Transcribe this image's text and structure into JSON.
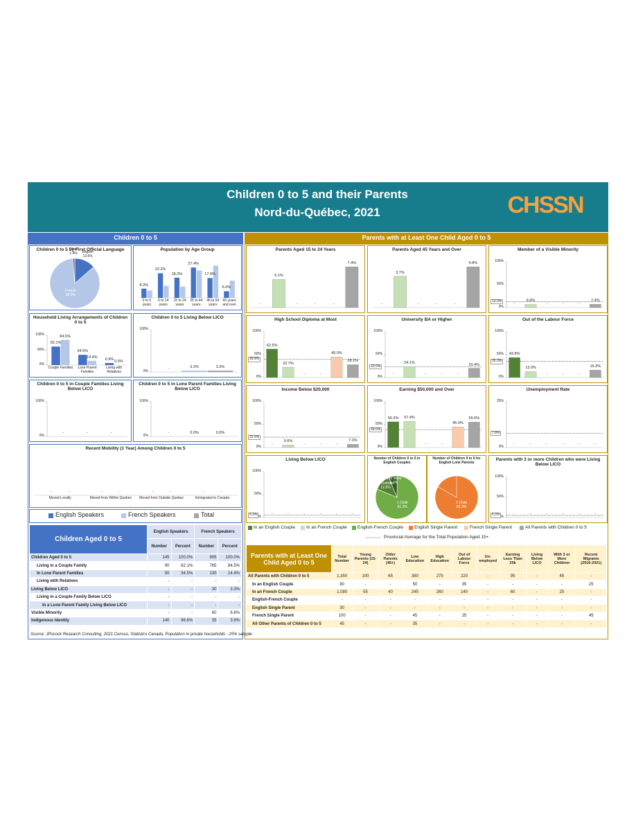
{
  "header": {
    "title": "Children 0 to 5 and their Parents",
    "subtitle": "Nord-du-Québec, 2021",
    "logo": "CHSSN"
  },
  "sections": {
    "children": "Children 0 to 5",
    "parents": "Parents with at Least One Child Aged 0 to 5"
  },
  "legend_left": [
    {
      "name": "English Speakers",
      "color": "#4472c4"
    },
    {
      "name": "French Speakers",
      "color": "#b4c7e7"
    },
    {
      "name": "Total",
      "color": "#a5a5a5"
    }
  ],
  "legend_right": [
    {
      "name": "In an English Couple",
      "color": "#548235"
    },
    {
      "name": "In an French Couple",
      "color": "#c5e0b4"
    },
    {
      "name": "English-French Couple",
      "color": "#70ad47"
    },
    {
      "name": "English Single Parent",
      "color": "#ed7d31"
    },
    {
      "name": "French Single Parent",
      "color": "#f8cbad"
    },
    {
      "name": "All Parents with Children 0 to 5",
      "color": "#a5a5a5"
    }
  ],
  "provincial_average": "Provincial Average for the Total Population Aged 15+",
  "chart_data": [
    {
      "type": "pie",
      "title": "Children 0 to 5 by First Official Language",
      "categories": [
        "English",
        "French",
        "Other"
      ],
      "values": [
        13.6,
        85.0,
        1.4
      ],
      "value_labels": [
        "13.6%",
        "85.0%",
        "1.4%"
      ],
      "colors": [
        "#4472c4",
        "#b4c7e7",
        "#7f7f7f"
      ]
    },
    {
      "type": "bar",
      "title": "Population by Age Group",
      "categories": [
        "0 to 5 years",
        "6 to 14 years",
        "15 to 24 years",
        "25 to 44 years",
        "45 to 64 years",
        "65 years and over"
      ],
      "series": [
        {
          "color": "#4472c4",
          "values": [
            8.3,
            22.2,
            18.2,
            27.4,
            17.9,
            6.0
          ],
          "value_labels": [
            "8.3%",
            "22.2%",
            "18.2%",
            "27.4%",
            "17.9%",
            "6.0%"
          ]
        },
        {
          "color": "#b4c7e7",
          "values": [
            6.6,
            11.0,
            10.2,
            24.8,
            29.0,
            15.5
          ]
        }
      ]
    },
    {
      "type": "bar",
      "title": "Household Living Arrangements of Children 0 to 5",
      "categories": [
        "Couple Families",
        "Lone Parent Families",
        "Living with Relatives"
      ],
      "ylim": [
        0,
        100
      ],
      "yticks": [
        {
          "value": 0,
          "label": "0%"
        },
        {
          "value": 50,
          "label": "50%"
        },
        {
          "value": 100,
          "label": "100%"
        }
      ],
      "series": [
        {
          "color": "#4472c4",
          "values": [
            62.1,
            34.5,
            6.9
          ],
          "value_labels": [
            "62.1%",
            "34.5%",
            "6.9%"
          ]
        },
        {
          "color": "#b4c7e7",
          "values": [
            84.5,
            14.4,
            0.0
          ],
          "value_labels": [
            "84.5%",
            "14.4%",
            "0.0%"
          ]
        }
      ]
    },
    {
      "type": "bar",
      "title": "Children 0 to 5 Living Below LICO",
      "categories": [
        null
      ],
      "ylim": [
        0,
        100
      ],
      "yticks": [
        {
          "value": 0,
          "label": "0%"
        },
        {
          "value": 100,
          "label": "100%"
        }
      ],
      "series": [
        {
          "color": "#4472c4",
          "values": [
            null
          ],
          "value_labels": [
            "-"
          ]
        },
        {
          "color": "#b4c7e7",
          "values": [
            3.3
          ],
          "value_labels": [
            "3.3%"
          ]
        },
        {
          "color": "#a5a5a5",
          "values": [
            3.3
          ],
          "value_labels": [
            "3.3%"
          ]
        }
      ]
    },
    {
      "type": "bar",
      "title": "Children 0 to 5 in Couple Families Living Below LICO",
      "categories": [
        null
      ],
      "ylim": [
        0,
        100
      ],
      "yticks": [
        {
          "value": 0,
          "label": "0%"
        },
        {
          "value": 100,
          "label": "100%"
        }
      ],
      "series": [
        {
          "color": "#4472c4",
          "values": [
            null
          ],
          "value_labels": [
            "-"
          ]
        },
        {
          "color": "#b4c7e7",
          "values": [
            null
          ],
          "value_labels": [
            "-"
          ]
        },
        {
          "color": "#a5a5a5",
          "values": [
            null
          ],
          "value_labels": [
            "-"
          ]
        }
      ]
    },
    {
      "type": "bar",
      "title": "Children 0 to 5 in Lone Parent Families Living Below LICO",
      "categories": [
        null
      ],
      "ylim": [
        0,
        100
      ],
      "yticks": [
        {
          "value": 0,
          "label": "0%"
        },
        {
          "value": 100,
          "label": "100%"
        }
      ],
      "series": [
        {
          "color": "#4472c4",
          "values": [
            null
          ],
          "value_labels": [
            "-"
          ]
        },
        {
          "color": "#b4c7e7",
          "values": [
            0.0
          ],
          "value_labels": [
            "0.0%"
          ]
        },
        {
          "color": "#a5a5a5",
          "values": [
            0.0
          ],
          "value_labels": [
            "0.0%"
          ]
        }
      ]
    },
    {
      "type": "bar",
      "title": "Recent Mobility (1 Year) Among Children 0 to 5",
      "categories": [
        "Moved Locally",
        "Moved from Within Quebec",
        "Moved from Outside Quebec",
        "Immigrated to Canada"
      ],
      "series": [
        {
          "color": "#4472c4",
          "values": [
            null,
            null,
            null,
            null
          ],
          "value_labels": [
            "-",
            "-",
            "-",
            "-"
          ]
        },
        {
          "color": "#b4c7e7",
          "values": [
            null,
            null,
            null,
            null
          ],
          "value_labels": [
            "-",
            "-",
            "-",
            "-"
          ]
        }
      ]
    },
    {
      "type": "column",
      "title": "Parents Aged 15 to 24 Years",
      "values": [
        null,
        5.1,
        null,
        null,
        null,
        7.4
      ],
      "value_labels": [
        "-",
        "5.1%",
        "-",
        "-",
        "-",
        "7.4%"
      ]
    },
    {
      "type": "column",
      "title": "Parents Aged 45 Years and Over",
      "values": [
        null,
        3.7,
        null,
        null,
        null,
        4.8
      ],
      "value_labels": [
        "-",
        "3.7%",
        "-",
        "-",
        "-",
        "4.8%"
      ]
    },
    {
      "type": "column",
      "title": "Member of a Visible Minority",
      "ylim": [
        0,
        100
      ],
      "yticks": [
        {
          "value": 0,
          "label": "0%"
        },
        {
          "value": 50,
          "label": "50%"
        },
        {
          "value": 100,
          "label": "100%"
        }
      ],
      "reference": 13.0,
      "reference_label": "13.0%",
      "values": [
        null,
        6.9,
        null,
        null,
        null,
        7.4
      ],
      "value_labels": [
        "-",
        "6.9%",
        "-",
        "-",
        "-",
        "7.4%"
      ]
    },
    {
      "type": "column",
      "title": "High School Diploma at Most",
      "ylim": [
        0,
        100
      ],
      "yticks": [
        {
          "value": 0,
          "label": "0%"
        },
        {
          "value": 50,
          "label": "50%"
        },
        {
          "value": 100,
          "label": "100%"
        }
      ],
      "reference": 39.8,
      "reference_label": "39.8%",
      "values": [
        62.5,
        22.7,
        null,
        null,
        45.0,
        28.1
      ],
      "value_labels": [
        "62.5%",
        "22.7%",
        "-",
        "-",
        "45.0%",
        "28.1%"
      ]
    },
    {
      "type": "column",
      "title": "University BA or Higher",
      "ylim": [
        0,
        100
      ],
      "yticks": [
        {
          "value": 0,
          "label": "0%"
        },
        {
          "value": 50,
          "label": "50%"
        },
        {
          "value": 100,
          "label": "100%"
        }
      ],
      "reference": 23.5,
      "reference_label": "23.5%",
      "values": [
        null,
        24.1,
        null,
        null,
        null,
        20.4
      ],
      "value_labels": [
        "-",
        "24.1%",
        "-",
        "-",
        "-",
        "20.4%"
      ]
    },
    {
      "type": "column",
      "title": "Out of the Labour Force",
      "ylim": [
        0,
        100
      ],
      "yticks": [
        {
          "value": 0,
          "label": "0%"
        },
        {
          "value": 50,
          "label": "50%"
        },
        {
          "value": 100,
          "label": "100%"
        }
      ],
      "reference": 35.3,
      "reference_label": "35.3%",
      "values": [
        43.8,
        13.0,
        null,
        null,
        null,
        16.3
      ],
      "value_labels": [
        "43.8%",
        "13.0%",
        "-",
        "-",
        "-",
        "16.3%"
      ]
    },
    {
      "type": "column",
      "title": "Income Below $20,000",
      "ylim": [
        0,
        100
      ],
      "yticks": [
        {
          "value": 0,
          "label": "0%"
        },
        {
          "value": 50,
          "label": "50%"
        },
        {
          "value": 100,
          "label": "100%"
        }
      ],
      "reference": 22.6,
      "reference_label": "22.6%",
      "values": [
        null,
        5.6,
        null,
        null,
        null,
        7.0
      ],
      "value_labels": [
        "-",
        "5.6%",
        "-",
        "-",
        "-",
        "7.0%"
      ]
    },
    {
      "type": "column",
      "title": "Earning $50,000 and Over",
      "ylim": [
        0,
        100
      ],
      "yticks": [
        {
          "value": 0,
          "label": "0%"
        },
        {
          "value": 50,
          "label": "50%"
        },
        {
          "value": 100,
          "label": "100%"
        }
      ],
      "reference": 39.0,
      "reference_label": "39.0%",
      "values": [
        56.3,
        57.4,
        null,
        null,
        45.0,
        55.6
      ],
      "value_labels": [
        "56.3%",
        "57.4%",
        "-",
        "-",
        "45.0%",
        "55.6%"
      ]
    },
    {
      "type": "column",
      "title": "Unemployment Rate",
      "ylim": [
        0,
        25
      ],
      "yticks": [
        {
          "value": 0,
          "label": "0%"
        },
        {
          "value": 25,
          "label": "25%"
        }
      ],
      "reference": 7.8,
      "reference_label": "7.8%",
      "values": [
        null,
        null,
        null,
        null,
        null,
        null
      ],
      "value_labels": [
        "-",
        "-",
        "-",
        "-",
        "-",
        "-"
      ]
    },
    {
      "type": "column",
      "title": "Living Below LICO",
      "ylim": [
        0,
        100
      ],
      "yticks": [
        {
          "value": 0,
          "label": "0%"
        },
        {
          "value": 50,
          "label": "50%"
        },
        {
          "value": 100,
          "label": "100%"
        }
      ],
      "reference": 5.3,
      "reference_label": "5.3%",
      "values": [
        null,
        null,
        null,
        null,
        null,
        null
      ],
      "value_labels": [
        "-",
        "-",
        "-",
        "-",
        "-",
        "-"
      ]
    },
    {
      "type": "pie",
      "title": "Number of Children 0 to 5 in English Couples",
      "categories": [
        "1 Child",
        "2 Children",
        "3 or More"
      ],
      "values": [
        81.3,
        12.5,
        6.3
      ],
      "value_labels": [
        "81.3%",
        "12.5%",
        "6.3%"
      ],
      "colors": [
        "#70ad47",
        "#548235",
        "#375623"
      ]
    },
    {
      "type": "pie",
      "title": "Number of Children 0 to 5 for English Lone Parents",
      "categories": [
        "1 Child",
        "2 Children",
        "3 or More"
      ],
      "values": [
        83.3,
        null,
        null
      ],
      "value_labels": [
        "83.3%",
        null,
        null
      ],
      "colors": [
        "#ed7d31",
        "#f4a36b",
        "#c55a11"
      ]
    },
    {
      "type": "column",
      "title": "Parents with 3 or more Children who were Living Below LICO",
      "ylim": [
        0,
        100
      ],
      "yticks": [
        {
          "value": 0,
          "label": "0%"
        },
        {
          "value": 50,
          "label": "50%"
        },
        {
          "value": 100,
          "label": "100%"
        }
      ],
      "reference": 5.3,
      "reference_label": "5.3%",
      "values": [
        null,
        null,
        null,
        null,
        null,
        null
      ],
      "value_labels": [
        "-",
        "-",
        "-",
        "-",
        "-",
        "-"
      ]
    }
  ],
  "children_table": {
    "title": "Children Aged 0 to 5",
    "groups": [
      "English Speakers",
      "French Speakers"
    ],
    "columns": [
      "Number",
      "Percent",
      "Number",
      "Percent"
    ],
    "rows": [
      {
        "label": "Children Aged 0 to 5",
        "cells": [
          "145",
          "100.0%",
          "905",
          "100.0%"
        ]
      },
      {
        "label": "Living in a Couple Family",
        "cells": [
          "90",
          "62.1%",
          "765",
          "84.5%"
        ]
      },
      {
        "label": "In Lone Parent Families",
        "cells": [
          "50",
          "34.5%",
          "130",
          "14.4%"
        ]
      },
      {
        "label": "Living with Relatives",
        "cells": [
          "-",
          "-",
          "-",
          "-"
        ]
      },
      {
        "label": "Living Below LICO",
        "cells": [
          "-",
          "-",
          "30",
          "3.3%"
        ]
      },
      {
        "label": "Living in a Couple Family Below LICO",
        "cells": [
          "-",
          "-",
          "-",
          "-"
        ]
      },
      {
        "label": "In a Lone Parent Family Living Below LICO",
        "cells": [
          "-",
          "-",
          "-",
          "-"
        ]
      },
      {
        "label": "Visible Minority",
        "cells": [
          "-",
          "-",
          "60",
          "6.6%"
        ]
      },
      {
        "label": "Indigenous Identity",
        "cells": [
          "140",
          "96.6%",
          "35",
          "3.9%"
        ]
      }
    ]
  },
  "parents_table": {
    "title": "Parents with at Least One Child Aged 0 to 5",
    "columns": [
      "Total Number",
      "Young Parents (15-24)",
      "Older Parents (45+)",
      "Low Education",
      "High Education",
      "Out of Labour Force",
      "Un-employed",
      "Earning Less Than 20k",
      "Living Below LICO",
      "With 3 or More Children",
      "Recent Migrants (2016-2021)"
    ],
    "rows": [
      {
        "label": "All Parents with Children 0 to 5",
        "cells": [
          "1,350",
          "100",
          "65",
          "380",
          "275",
          "220",
          "-",
          "95",
          "-",
          "45",
          "-"
        ]
      },
      {
        "label": "In an English Couple",
        "cells": [
          "80",
          "-",
          "-",
          "50",
          "-",
          "35",
          "-",
          "-",
          "-",
          "-",
          "25"
        ]
      },
      {
        "label": "In an French Couple",
        "cells": [
          "1,080",
          "55",
          "40",
          "245",
          "260",
          "140",
          "-",
          "60",
          "-",
          "25",
          "-"
        ]
      },
      {
        "label": "English-French Couple",
        "cells": [
          "-",
          "-",
          "-",
          "-",
          "-",
          "-",
          "-",
          "-",
          "-",
          "-",
          "-"
        ]
      },
      {
        "label": "English Single Parent",
        "cells": [
          "30",
          "-",
          "-",
          "-",
          "-",
          "-",
          "-",
          "-",
          "-",
          "-",
          "-"
        ]
      },
      {
        "label": "French Single Parent",
        "cells": [
          "100",
          "-",
          "-",
          "45",
          "-",
          "25",
          "-",
          "-",
          "-",
          "-",
          "45"
        ]
      },
      {
        "label": "All Other Parents of Children 0 to 5",
        "cells": [
          "45",
          "-",
          "-",
          "35",
          "-",
          "-",
          "-",
          "-",
          "-",
          "-",
          "-"
        ]
      }
    ]
  },
  "source": "Source: JPocock Research Consulting, 2021 Census, Statistics Canada. Population in private households - 25% sample."
}
